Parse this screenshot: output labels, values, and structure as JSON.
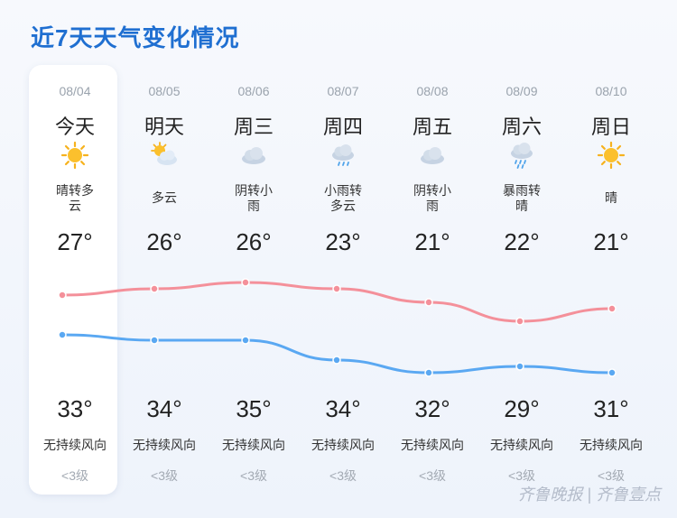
{
  "title": "近7天天气变化情况",
  "colors": {
    "title": "#1f6fd1",
    "high_line": "#f4909a",
    "low_line": "#5aa8f2"
  },
  "days": [
    {
      "date": "08/04",
      "name": "今天",
      "weather_line1": "晴转多",
      "weather_line2": "云",
      "icon": "sun-icon",
      "high": "27°",
      "low": "33°",
      "high_value": 27,
      "low_value": 33,
      "wind": "无持续风向",
      "level": "<3级",
      "today": true
    },
    {
      "date": "08/05",
      "name": "明天",
      "weather_line1": "多云",
      "weather_line2": "",
      "icon": "partly-cloudy-icon",
      "high": "26°",
      "low": "34°",
      "high_value": 26,
      "low_value": 34,
      "wind": "无持续风向",
      "level": "<3级"
    },
    {
      "date": "08/06",
      "name": "周三",
      "weather_line1": "阴转小",
      "weather_line2": "雨",
      "icon": "cloud-icon",
      "high": "26°",
      "low": "35°",
      "high_value": 26,
      "low_value": 35,
      "wind": "无持续风向",
      "level": "<3级"
    },
    {
      "date": "08/07",
      "name": "周四",
      "weather_line1": "小雨转",
      "weather_line2": "多云",
      "icon": "rain-cloud-icon",
      "high": "23°",
      "low": "34°",
      "high_value": 23,
      "low_value": 34,
      "wind": "无持续风向",
      "level": "<3级"
    },
    {
      "date": "08/08",
      "name": "周五",
      "weather_line1": "阴转小",
      "weather_line2": "雨",
      "icon": "cloud-icon",
      "high": "21°",
      "low": "32°",
      "high_value": 21,
      "low_value": 32,
      "wind": "无持续风向",
      "level": "<3级"
    },
    {
      "date": "08/09",
      "name": "周六",
      "weather_line1": "暴雨转",
      "weather_line2": "晴",
      "icon": "heavy-rain-icon",
      "high": "22°",
      "low": "29°",
      "high_value": 22,
      "low_value": 29,
      "wind": "无持续风向",
      "level": "<3级"
    },
    {
      "date": "08/10",
      "name": "周日",
      "weather_line1": "晴",
      "weather_line2": "",
      "icon": "sun-icon",
      "high": "21°",
      "low": "31°",
      "high_value": 21,
      "low_value": 31,
      "wind": "无持续风向",
      "level": "<3级"
    }
  ],
  "watermark": "齐鲁晚报 | 齐鲁壹点"
}
